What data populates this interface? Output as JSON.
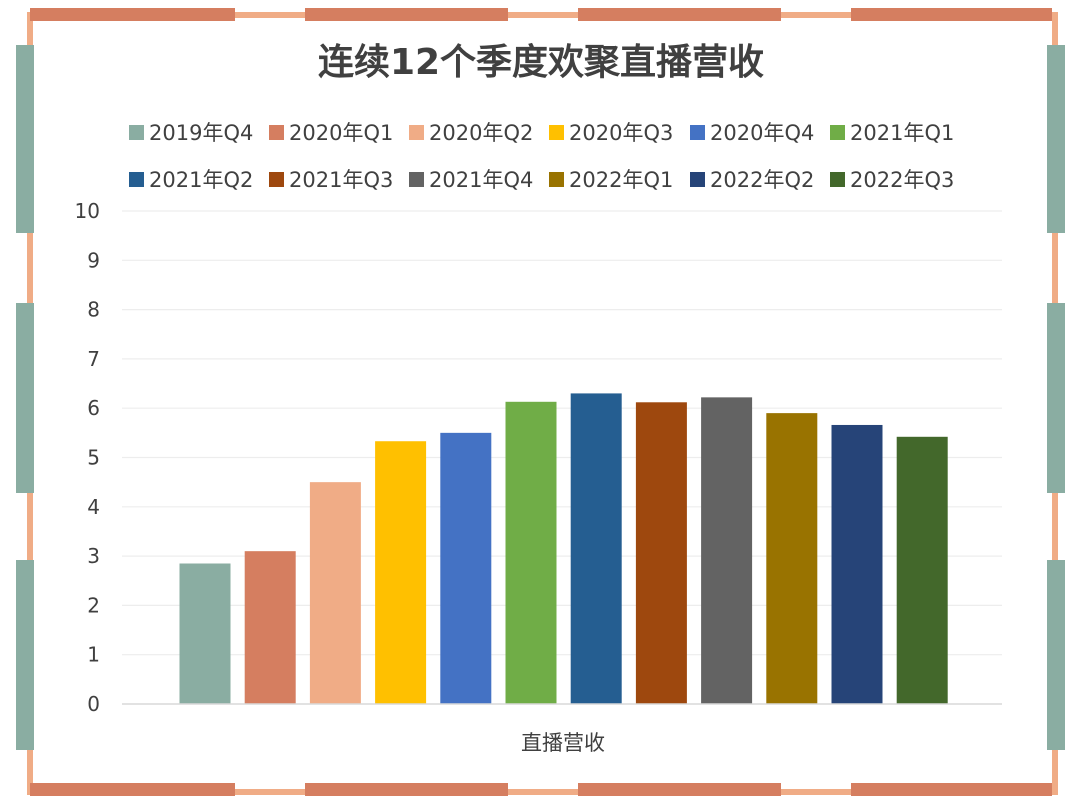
{
  "chart_data": {
    "type": "bar",
    "title": "连续12个季度欢聚直播营收",
    "xlabel": "直播营收",
    "ylabel": "",
    "ylim": [
      0,
      10
    ],
    "yticks": [
      0,
      1,
      2,
      3,
      4,
      5,
      6,
      7,
      8,
      9,
      10
    ],
    "categories": [
      "直播营收"
    ],
    "grid": true,
    "legend_position": "top",
    "series": [
      {
        "name": "2019年Q4",
        "values": [
          2.85
        ],
        "color": "#8AADA2"
      },
      {
        "name": "2020年Q1",
        "values": [
          3.1
        ],
        "color": "#D57E60"
      },
      {
        "name": "2020年Q2",
        "values": [
          4.5
        ],
        "color": "#F0AC86"
      },
      {
        "name": "2020年Q3",
        "values": [
          5.33
        ],
        "color": "#FFC000"
      },
      {
        "name": "2020年Q4",
        "values": [
          5.5
        ],
        "color": "#4472C4"
      },
      {
        "name": "2021年Q1",
        "values": [
          6.13
        ],
        "color": "#70AD47"
      },
      {
        "name": "2021年Q2",
        "values": [
          6.3
        ],
        "color": "#255E91"
      },
      {
        "name": "2021年Q3",
        "values": [
          6.12
        ],
        "color": "#9E480E"
      },
      {
        "name": "2021年Q4",
        "values": [
          6.22
        ],
        "color": "#636363"
      },
      {
        "name": "2022年Q1",
        "values": [
          5.9
        ],
        "color": "#997300"
      },
      {
        "name": "2022年Q2",
        "values": [
          5.66
        ],
        "color": "#264478"
      },
      {
        "name": "2022年Q3",
        "values": [
          5.42
        ],
        "color": "#43682B"
      }
    ]
  }
}
